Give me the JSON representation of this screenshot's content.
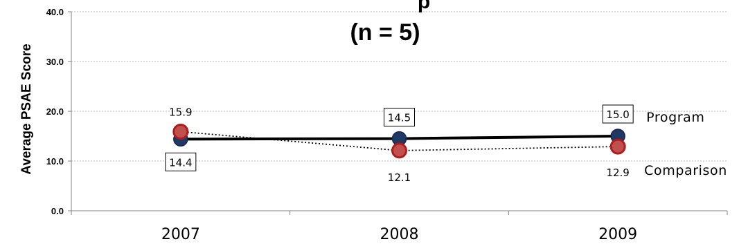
{
  "chart_data": {
    "type": "line",
    "title": "(n = 5)",
    "title_clipped_fragment": "p",
    "xlabel": "",
    "ylabel": "Average PSAE Score",
    "categories": [
      "2007",
      "2008",
      "2009"
    ],
    "ylim": [
      0,
      40
    ],
    "yticks": [
      "0.0",
      "10.0",
      "20.0",
      "30.0",
      "40.0"
    ],
    "grid": true,
    "series": [
      {
        "name": "Program",
        "values": [
          14.4,
          14.5,
          15.0
        ],
        "labels": [
          "14.4",
          "14.5",
          "15.0"
        ],
        "line_style": "solid",
        "line_color": "#000000",
        "marker_color": "#1f3864",
        "marker_edge": "#16284a",
        "boxed_labels": true
      },
      {
        "name": "Comparison",
        "values": [
          15.9,
          12.1,
          12.9
        ],
        "labels": [
          "15.9",
          "12.1",
          "12.9"
        ],
        "line_style": "dotted",
        "line_color": "#000000",
        "marker_color": "#c0504d",
        "marker_edge": "#b01c1c",
        "boxed_labels": false
      }
    ]
  }
}
